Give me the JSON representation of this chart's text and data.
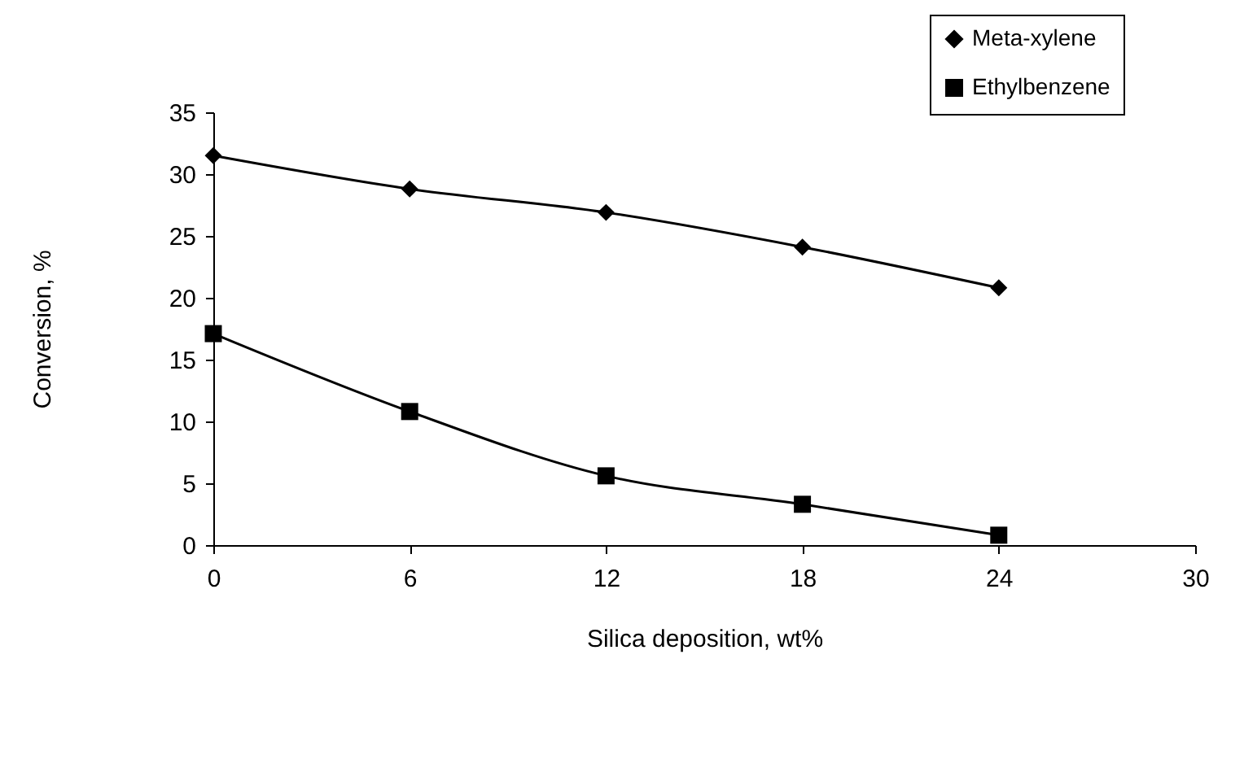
{
  "chart_data": {
    "type": "line",
    "xlabel": "Silica deposition, wt%",
    "ylabel": "Conversion, %",
    "x": [
      0,
      6,
      12,
      18,
      24
    ],
    "series": [
      {
        "name": "Meta-xylene",
        "color": "#000000",
        "marker": "diamond",
        "values": [
          31.5,
          28.8,
          26.9,
          24.1,
          20.8
        ]
      },
      {
        "name": "Ethylbenzene",
        "color": "#000000",
        "marker": "square",
        "values": [
          17.1,
          10.8,
          5.6,
          3.3,
          0.8
        ]
      }
    ],
    "xlim": [
      0,
      30
    ],
    "xticks": [
      0,
      6,
      12,
      18,
      24,
      30
    ],
    "ylim": [
      0,
      35
    ],
    "yticks": [
      0,
      5,
      10,
      15,
      20,
      25,
      30,
      35
    ],
    "grid": false,
    "legend": "top right",
    "line_style": "solid"
  }
}
